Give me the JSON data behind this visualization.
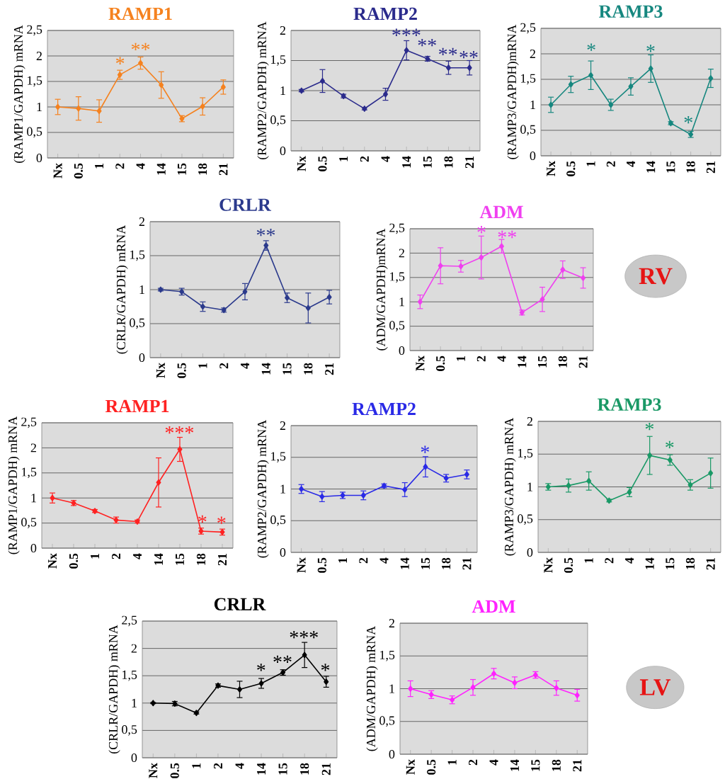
{
  "chart_data": [
    {
      "type": "line",
      "title": "RAMP1",
      "ylabel": "(RAMP1/GAPDH) mRNA",
      "categories": [
        "Nx",
        "0.5",
        "1",
        "2",
        "4",
        "14",
        "15",
        "18",
        "21"
      ],
      "series": [
        {
          "color": "#f5821f",
          "values": [
            1.0,
            0.97,
            0.92,
            1.63,
            1.86,
            1.43,
            0.77,
            1.01,
            1.39
          ],
          "errors": [
            0.15,
            0.23,
            0.22,
            0.09,
            0.12,
            0.26,
            0.06,
            0.17,
            0.14
          ]
        }
      ],
      "ylim": [
        0,
        2.5
      ],
      "yticks": [
        0,
        {
          "value": 0.5,
          "label": "0,5"
        },
        1,
        {
          "value": 1.5,
          "label": "1,5"
        },
        2,
        {
          "value": 2.5,
          "label": "2,5"
        }
      ],
      "grid": "y",
      "marker": "diamond",
      "annotations": [
        "*",
        "**"
      ]
    },
    {
      "type": "line",
      "title": "RAMP2",
      "ylabel": "(RAMP2/GAPDH) mRNA",
      "categories": [
        "Nx",
        "0.5",
        "1",
        "2",
        "4",
        "14",
        "15",
        "18",
        "21"
      ],
      "series": [
        {
          "color": "#2b2b8c",
          "values": [
            1.0,
            1.16,
            0.91,
            0.7,
            0.94,
            1.67,
            1.53,
            1.38,
            1.38
          ],
          "errors": [
            0.02,
            0.19,
            0.03,
            0.02,
            0.1,
            0.16,
            0.04,
            0.11,
            0.12
          ]
        }
      ],
      "ylim": [
        0,
        2
      ],
      "yticks": [
        0,
        {
          "value": 0.5,
          "label": "0,5"
        },
        1,
        {
          "value": 1.5,
          "label": "1,5"
        },
        2
      ],
      "grid": "y",
      "marker": "diamond",
      "annotations": [
        "***",
        "**",
        "**",
        "**"
      ]
    },
    {
      "type": "line",
      "title": "RAMP3",
      "ylabel": "(RAMP3/GAPDH)mRNA",
      "categories": [
        "Nx",
        "0.5",
        "1",
        "2",
        "4",
        "14",
        "15",
        "18",
        "21"
      ],
      "series": [
        {
          "color": "#16877f",
          "values": [
            1.0,
            1.4,
            1.58,
            1.0,
            1.36,
            1.71,
            0.64,
            0.42,
            1.52
          ],
          "errors": [
            0.15,
            0.16,
            0.28,
            0.11,
            0.17,
            0.27,
            0.03,
            0.06,
            0.18
          ]
        }
      ],
      "ylim": [
        0,
        2.5
      ],
      "yticks": [
        0,
        {
          "value": 0.5,
          "label": "0,5"
        },
        1,
        {
          "value": 1.5,
          "label": "1,5"
        },
        2,
        {
          "value": 2.5,
          "label": "2,5"
        }
      ],
      "grid": "y",
      "marker": "diamond",
      "annotations": [
        "*",
        "*",
        "*"
      ]
    },
    {
      "type": "line",
      "title": "CRLR",
      "ylabel": "(CRLR/GAPDH) mRNA",
      "categories": [
        "Nx",
        "0.5",
        "1",
        "2",
        "4",
        "14",
        "15",
        "18",
        "21"
      ],
      "series": [
        {
          "color": "#2b3a8c",
          "values": [
            1.0,
            0.97,
            0.75,
            0.7,
            0.97,
            1.65,
            0.88,
            0.73,
            0.89
          ],
          "errors": [
            0.02,
            0.05,
            0.07,
            0.03,
            0.12,
            0.07,
            0.07,
            0.22,
            0.1
          ]
        }
      ],
      "ylim": [
        0,
        2
      ],
      "yticks": [
        0,
        {
          "value": 0.5,
          "label": "0,5"
        },
        1,
        {
          "value": 1.5,
          "label": "1,5"
        },
        2
      ],
      "grid": "y",
      "marker": "diamond",
      "annotations": [
        "**"
      ]
    },
    {
      "type": "line",
      "title": "ADM",
      "ylabel": "(ADM/GAPDH)mRNA",
      "categories": [
        "Nx",
        "0.5",
        "1",
        "2",
        "4",
        "14",
        "15",
        "18",
        "21"
      ],
      "series": [
        {
          "color": "#f040f0",
          "values": [
            1.0,
            1.74,
            1.73,
            1.91,
            2.14,
            0.78,
            1.05,
            1.66,
            1.49
          ],
          "errors": [
            0.14,
            0.37,
            0.12,
            0.44,
            0.14,
            0.05,
            0.25,
            0.18,
            0.21
          ]
        }
      ],
      "ylim": [
        0,
        2.5
      ],
      "yticks": [
        0,
        {
          "value": 0.5,
          "label": "0,5"
        },
        1,
        {
          "value": 1.5,
          "label": "1,5"
        },
        2,
        {
          "value": 2.5,
          "label": "2,5"
        }
      ],
      "grid": "y",
      "marker": "diamond",
      "annotations": [
        "*",
        "**",
        "RV"
      ]
    },
    {
      "type": "line",
      "title": "RAMP1",
      "ylabel": "(RAMP1/GAPDH) mRNA",
      "categories": [
        "Nx",
        "0.5",
        "1",
        "2",
        "4",
        "14",
        "15",
        "18",
        "21"
      ],
      "series": [
        {
          "color": "#ff2222",
          "values": [
            1.0,
            0.9,
            0.74,
            0.56,
            0.53,
            1.31,
            1.97,
            0.34,
            0.32
          ],
          "errors": [
            0.1,
            0.05,
            0.03,
            0.06,
            0.03,
            0.49,
            0.24,
            0.06,
            0.06
          ]
        }
      ],
      "ylim": [
        0,
        2.5
      ],
      "yticks": [
        0,
        {
          "value": 0.5,
          "label": "0,5"
        },
        1,
        {
          "value": 1.5,
          "label": "1,5"
        },
        2,
        {
          "value": 2.5,
          "label": "2,5"
        }
      ],
      "grid": "y",
      "marker": "diamond",
      "annotations": [
        "***",
        "*",
        "*"
      ]
    },
    {
      "type": "line",
      "title": "RAMP2",
      "ylabel": "(RAMP2/GAPDH) mRNA",
      "categories": [
        "Nx",
        "0.5",
        "1",
        "2",
        "4",
        "14",
        "15",
        "18",
        "21"
      ],
      "series": [
        {
          "color": "#2a2ae6",
          "values": [
            1.0,
            0.88,
            0.9,
            0.9,
            1.05,
            0.99,
            1.35,
            1.17,
            1.23
          ],
          "errors": [
            0.07,
            0.08,
            0.05,
            0.07,
            0.03,
            0.11,
            0.16,
            0.06,
            0.07
          ]
        }
      ],
      "ylim": [
        0,
        2
      ],
      "yticks": [
        0,
        {
          "value": 0.5,
          "label": "0,5"
        },
        1,
        {
          "value": 1.5,
          "label": "1,5"
        },
        2
      ],
      "grid": "y",
      "marker": "diamond",
      "annotations": [
        "*"
      ]
    },
    {
      "type": "line",
      "title": "RAMP3",
      "ylabel": "(RAMP3/GAPDH) mRNA",
      "categories": [
        "Nx",
        "0.5",
        "1",
        "2",
        "4",
        "14",
        "15",
        "18",
        "21"
      ],
      "series": [
        {
          "color": "#1a9966",
          "values": [
            1.0,
            1.02,
            1.09,
            0.79,
            0.92,
            1.48,
            1.41,
            1.03,
            1.21
          ],
          "errors": [
            0.05,
            0.1,
            0.14,
            0.02,
            0.07,
            0.29,
            0.08,
            0.08,
            0.23
          ]
        }
      ],
      "ylim": [
        0,
        2
      ],
      "yticks": [
        0,
        {
          "value": 0.5,
          "label": "0,5"
        },
        1,
        {
          "value": 1.5,
          "label": "1,5"
        },
        2
      ],
      "grid": "y",
      "marker": "diamond",
      "annotations": [
        "*",
        "*"
      ]
    },
    {
      "type": "line",
      "title": "CRLR",
      "ylabel": "(CRLR/GAPDH) mRNA",
      "categories": [
        "Nx",
        "0.5",
        "1",
        "2",
        "4",
        "14",
        "15",
        "18",
        "21"
      ],
      "series": [
        {
          "color": "#000000",
          "values": [
            1.0,
            0.99,
            0.82,
            1.32,
            1.25,
            1.36,
            1.56,
            1.88,
            1.39
          ],
          "errors": [
            0.01,
            0.04,
            0.02,
            0.03,
            0.15,
            0.09,
            0.05,
            0.23,
            0.1
          ]
        }
      ],
      "ylim": [
        0,
        2.5
      ],
      "yticks": [
        0,
        {
          "value": 0.5,
          "label": "0,5"
        },
        1,
        {
          "value": 1.5,
          "label": "1,5"
        },
        2,
        {
          "value": 2.5,
          "label": "2,5"
        }
      ],
      "grid": "y",
      "marker": "diamond",
      "annotations": [
        "*",
        "**",
        "***",
        "*"
      ]
    },
    {
      "type": "line",
      "title": "ADM",
      "ylabel": "(ADM/GAPDH) mRNA",
      "categories": [
        "Nx",
        "0.5",
        "1",
        "2",
        "4",
        "14",
        "15",
        "18",
        "21"
      ],
      "series": [
        {
          "color": "#ff22ff",
          "values": [
            1.0,
            0.91,
            0.83,
            1.02,
            1.23,
            1.09,
            1.21,
            1.01,
            0.9
          ],
          "errors": [
            0.12,
            0.06,
            0.06,
            0.12,
            0.08,
            0.09,
            0.05,
            0.11,
            0.09
          ]
        }
      ],
      "ylim": [
        0,
        2
      ],
      "yticks": [
        0,
        {
          "value": 0.5,
          "label": "0,5"
        },
        1,
        {
          "value": 1.5,
          "label": "1,5"
        },
        2
      ],
      "grid": "y",
      "marker": "diamond",
      "annotations": [
        "LV"
      ]
    }
  ]
}
